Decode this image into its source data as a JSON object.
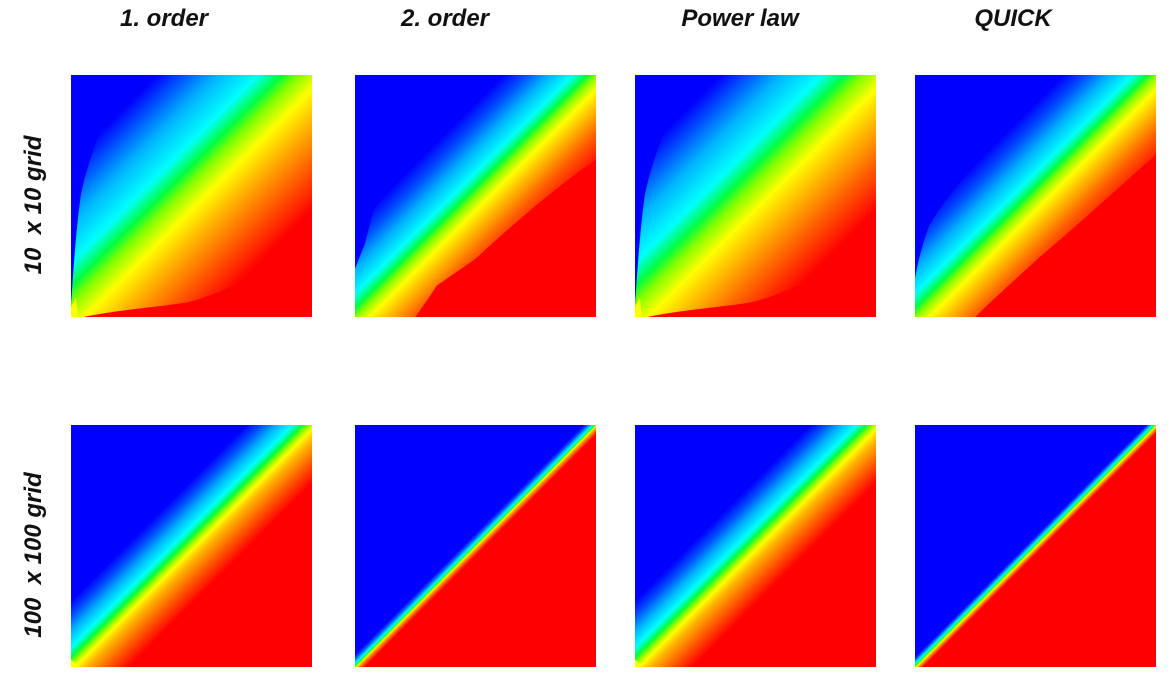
{
  "columns": [
    {
      "label": "1. order"
    },
    {
      "label": "2. order"
    },
    {
      "label": "Power law"
    },
    {
      "label": "QUICK"
    }
  ],
  "rows": [
    {
      "label": "10  x 10 grid"
    },
    {
      "label": "100  x 100 grid"
    }
  ],
  "colormap": [
    "#0000ff",
    "#0050ff",
    "#00b4ff",
    "#00ffff",
    "#00ff40",
    "#80ff00",
    "#ffff00",
    "#ffb400",
    "#ff6000",
    "#ff0000"
  ],
  "panels": [
    {
      "row": "10  x 10 grid",
      "column": "1. order",
      "diffusion": "very high"
    },
    {
      "row": "10  x 10 grid",
      "column": "2. order",
      "diffusion": "high"
    },
    {
      "row": "10  x 10 grid",
      "column": "Power law",
      "diffusion": "very high"
    },
    {
      "row": "10  x 10 grid",
      "column": "QUICK",
      "diffusion": "high"
    },
    {
      "row": "100  x 100 grid",
      "column": "1. order",
      "diffusion": "moderate"
    },
    {
      "row": "100  x 100 grid",
      "column": "2. order",
      "diffusion": "low"
    },
    {
      "row": "100  x 100 grid",
      "column": "Power law",
      "diffusion": "moderate"
    },
    {
      "row": "100  x 100 grid",
      "column": "QUICK",
      "diffusion": "very low"
    }
  ]
}
